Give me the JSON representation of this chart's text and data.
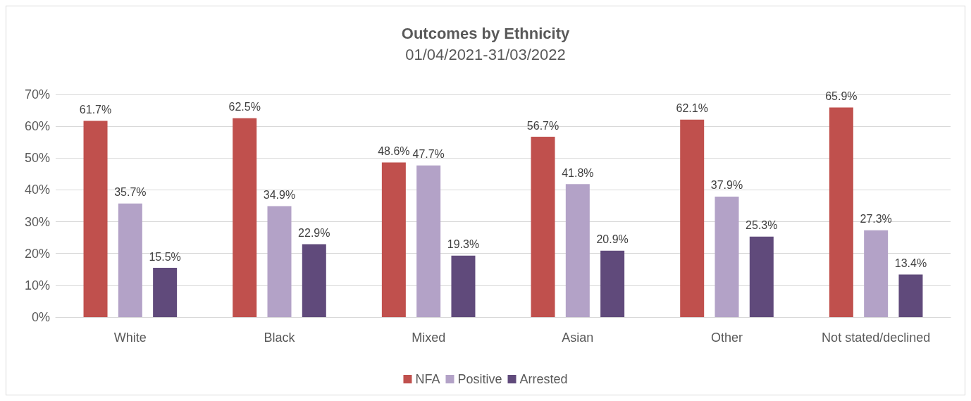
{
  "chart_data": {
    "type": "bar",
    "title": "Outcomes by Ethnicity",
    "subtitle": "01/04/2021-31/03/2022",
    "categories": [
      "White",
      "Black",
      "Mixed",
      "Asian",
      "Other",
      "Not stated/declined"
    ],
    "series": [
      {
        "name": "NFA",
        "color": "#c0504d",
        "values": [
          61.7,
          62.5,
          48.6,
          56.7,
          62.1,
          65.9
        ],
        "value_labels": [
          "61.7%",
          "62.5%",
          "48.6%",
          "56.7%",
          "62.1%",
          "65.9%"
        ]
      },
      {
        "name": "Positive",
        "color": "#b3a2c7",
        "values": [
          35.7,
          34.9,
          47.7,
          41.8,
          37.9,
          27.3
        ],
        "value_labels": [
          "35.7%",
          "34.9%",
          "47.7%",
          "41.8%",
          "37.9%",
          "27.3%"
        ]
      },
      {
        "name": "Arrested",
        "color": "#604a7b",
        "values": [
          15.5,
          22.9,
          19.3,
          20.9,
          25.3,
          13.4
        ],
        "value_labels": [
          "15.5%",
          "22.9%",
          "19.3%",
          "20.9%",
          "25.3%",
          "13.4%"
        ]
      }
    ],
    "ylim": [
      0,
      70
    ],
    "yticks": [
      {
        "value": 0,
        "label": "0%"
      },
      {
        "value": 10,
        "label": "10%"
      },
      {
        "value": 20,
        "label": "20%"
      },
      {
        "value": 30,
        "label": "30%"
      },
      {
        "value": 40,
        "label": "40%"
      },
      {
        "value": 50,
        "label": "50%"
      },
      {
        "value": 60,
        "label": "60%"
      },
      {
        "value": 70,
        "label": "70%"
      }
    ],
    "grid": "y",
    "legend": "bottom"
  }
}
